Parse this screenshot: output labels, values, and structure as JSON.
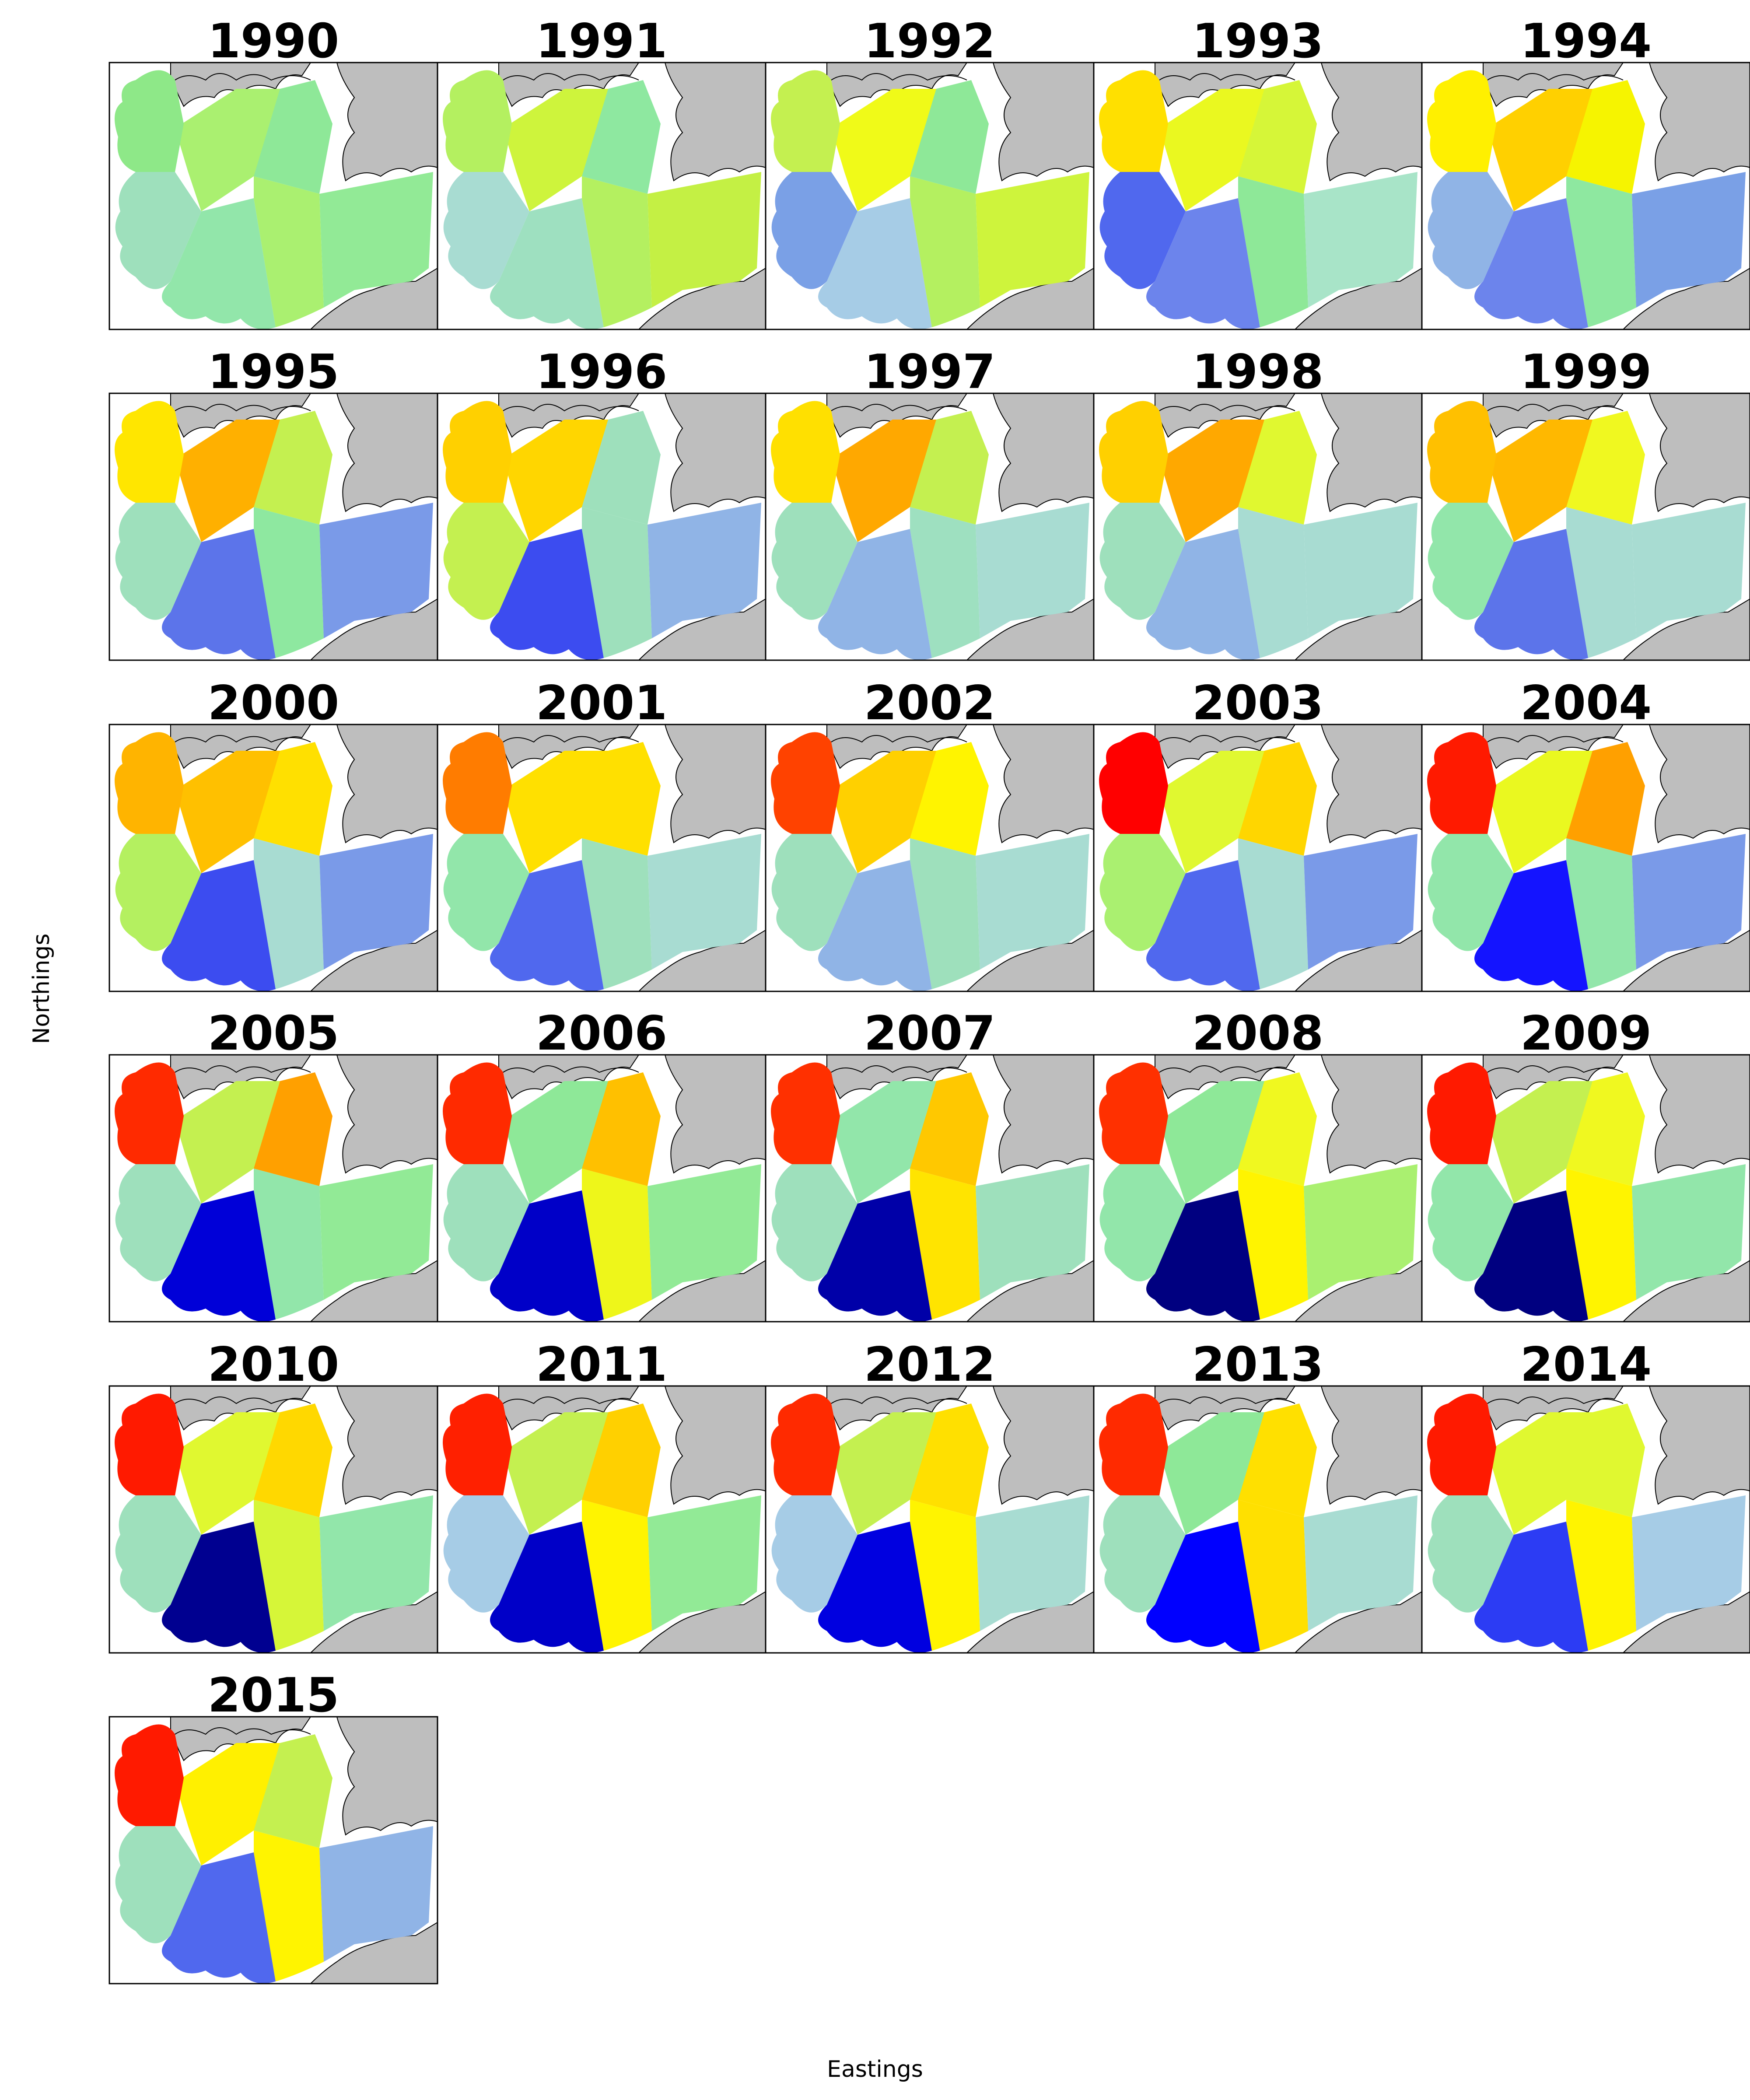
{
  "figure": {
    "xlabel": "Eastings",
    "ylabel": "Northings"
  },
  "colors": {
    "land": "#bebebe",
    "coastline": "#000000",
    "frame": "#000000"
  },
  "map_panels": [
    {
      "year": "1990",
      "regions": {
        "NW": "#8ee888",
        "NC": "#aaf070",
        "NE": "#8ee898",
        "W": "#9ee0bc",
        "SC": "#92e6aa",
        "C": "#aaf070",
        "E": "#92ea96"
      }
    },
    {
      "year": "1991",
      "regions": {
        "NW": "#b4f060",
        "NC": "#cef43c",
        "NE": "#8ee8a0",
        "W": "#a8dcd2",
        "SC": "#9ee0c0",
        "C": "#b4f060",
        "E": "#c4f044"
      }
    },
    {
      "year": "1992",
      "regions": {
        "NW": "#c4f050",
        "NC": "#f0fa18",
        "NE": "#8ee898",
        "W": "#7aa0e6",
        "SC": "#a6cce6",
        "C": "#b4f060",
        "E": "#cef43c"
      }
    },
    {
      "year": "1993",
      "regions": {
        "NW": "#ffe000",
        "NC": "#eaf820",
        "NE": "#d6f638",
        "W": "#5068ee",
        "SC": "#6c84ec",
        "C": "#8ee898",
        "E": "#a8e4c8"
      }
    },
    {
      "year": "1994",
      "regions": {
        "NW": "#fff000",
        "NC": "#ffd000",
        "NE": "#f6f400",
        "W": "#90b4e6",
        "SC": "#6c84ec",
        "C": "#8ee8a0",
        "E": "#7aa0e6"
      }
    },
    {
      "year": "1995",
      "regions": {
        "NW": "#ffe600",
        "NC": "#ffb000",
        "NE": "#c4f050",
        "W": "#9ee0bc",
        "SC": "#5c74ea",
        "C": "#8ee8a0",
        "E": "#7a9ae8"
      }
    },
    {
      "year": "1996",
      "regions": {
        "NW": "#ffd000",
        "NC": "#ffd600",
        "NE": "#9ee0bc",
        "W": "#c4f050",
        "SC": "#3c4cf0",
        "C": "#9ee0bc",
        "E": "#90b4e6"
      }
    },
    {
      "year": "1997",
      "regions": {
        "NW": "#ffe000",
        "NC": "#ffa800",
        "NE": "#c4f050",
        "W": "#9ee0bc",
        "SC": "#90b4e6",
        "C": "#9ee0c0",
        "E": "#a8dcd2"
      }
    },
    {
      "year": "1998",
      "regions": {
        "NW": "#ffd000",
        "NC": "#ffa800",
        "NE": "#e0f830",
        "W": "#9ee0bc",
        "SC": "#90b4e6",
        "C": "#a8dcd2",
        "E": "#a8dcd2"
      }
    },
    {
      "year": "1999",
      "regions": {
        "NW": "#ffc000",
        "NC": "#ffb800",
        "NE": "#f0f820",
        "W": "#92e6aa",
        "SC": "#5c74ea",
        "C": "#a8dcd2",
        "E": "#a8dcd2"
      }
    },
    {
      "year": "2000",
      "regions": {
        "NW": "#ffb400",
        "NC": "#ffc000",
        "NE": "#ffe000",
        "W": "#b4f060",
        "SC": "#3c4cf0",
        "C": "#a8dcd2",
        "E": "#7a9ae8"
      }
    },
    {
      "year": "2001",
      "regions": {
        "NW": "#ff7c00",
        "NC": "#ffe000",
        "NE": "#ffe000",
        "W": "#92e6aa",
        "SC": "#5068ee",
        "C": "#9ee0bc",
        "E": "#a8dcd2"
      }
    },
    {
      "year": "2002",
      "regions": {
        "NW": "#ff4200",
        "NC": "#ffd000",
        "NE": "#fff400",
        "W": "#9ee0bc",
        "SC": "#90b4e6",
        "C": "#9ee0bc",
        "E": "#a8dcd2"
      }
    },
    {
      "year": "2003",
      "regions": {
        "NW": "#ff0000",
        "NC": "#e0f830",
        "NE": "#ffd600",
        "W": "#aaf070",
        "SC": "#5068ee",
        "C": "#a8dcd2",
        "E": "#7a9ae8"
      }
    },
    {
      "year": "2004",
      "regions": {
        "NW": "#ff1a00",
        "NC": "#eaf820",
        "NE": "#ffa000",
        "W": "#92e6aa",
        "SC": "#1414ff",
        "C": "#92e6aa",
        "E": "#7a9ae8"
      }
    },
    {
      "year": "2005",
      "regions": {
        "NW": "#ff2a00",
        "NC": "#c4f050",
        "NE": "#ffa000",
        "W": "#9ee0bc",
        "SC": "#0000d8",
        "C": "#92e6aa",
        "E": "#92ea96"
      }
    },
    {
      "year": "2006",
      "regions": {
        "NW": "#ff2a00",
        "NC": "#8ee898",
        "NE": "#ffc000",
        "W": "#9ee0bc",
        "SC": "#0000c8",
        "C": "#eef61a",
        "E": "#92ea96"
      }
    },
    {
      "year": "2007",
      "regions": {
        "NW": "#ff3000",
        "NC": "#92e6aa",
        "NE": "#ffc800",
        "W": "#9ee0bc",
        "SC": "#0000a8",
        "C": "#ffe400",
        "E": "#9ee0bc"
      }
    },
    {
      "year": "2008",
      "regions": {
        "NW": "#ff3000",
        "NC": "#8ee898",
        "NE": "#f0f820",
        "W": "#92e6aa",
        "SC": "#000080",
        "C": "#fff400",
        "E": "#aaf070"
      }
    },
    {
      "year": "2009",
      "regions": {
        "NW": "#ff1a00",
        "NC": "#c4f050",
        "NE": "#f0f820",
        "W": "#92e6aa",
        "SC": "#000080",
        "C": "#fff400",
        "E": "#92e6aa"
      }
    },
    {
      "year": "2010",
      "regions": {
        "NW": "#ff1a00",
        "NC": "#e0f830",
        "NE": "#ffd800",
        "W": "#9ee0bc",
        "SC": "#000090",
        "C": "#d6f638",
        "E": "#92e6aa"
      }
    },
    {
      "year": "2011",
      "regions": {
        "NW": "#ff2000",
        "NC": "#c4f050",
        "NE": "#ffd000",
        "W": "#a6cce6",
        "SC": "#0000c8",
        "C": "#fff400",
        "E": "#92ea96"
      }
    },
    {
      "year": "2012",
      "regions": {
        "NW": "#ff2a00",
        "NC": "#c4f050",
        "NE": "#ffe000",
        "W": "#a6cce6",
        "SC": "#0000e0",
        "C": "#fff400",
        "E": "#a8dcd2"
      }
    },
    {
      "year": "2013",
      "regions": {
        "NW": "#ff2a00",
        "NC": "#8ee898",
        "NE": "#ffe000",
        "W": "#9ee0bc",
        "SC": "#0000ff",
        "C": "#ffe000",
        "E": "#a8dcd2"
      }
    },
    {
      "year": "2014",
      "regions": {
        "NW": "#ff1a00",
        "NC": "#e0f830",
        "NE": "#e0f830",
        "W": "#9ee0bc",
        "SC": "#2c3cf4",
        "C": "#fff400",
        "E": "#a6cce6"
      }
    },
    {
      "year": "2015",
      "regions": {
        "NW": "#ff1a00",
        "NC": "#fff000",
        "NE": "#c4f050",
        "W": "#9ee0bc",
        "SC": "#5068ee",
        "C": "#fff400",
        "E": "#90b4e6"
      }
    }
  ]
}
